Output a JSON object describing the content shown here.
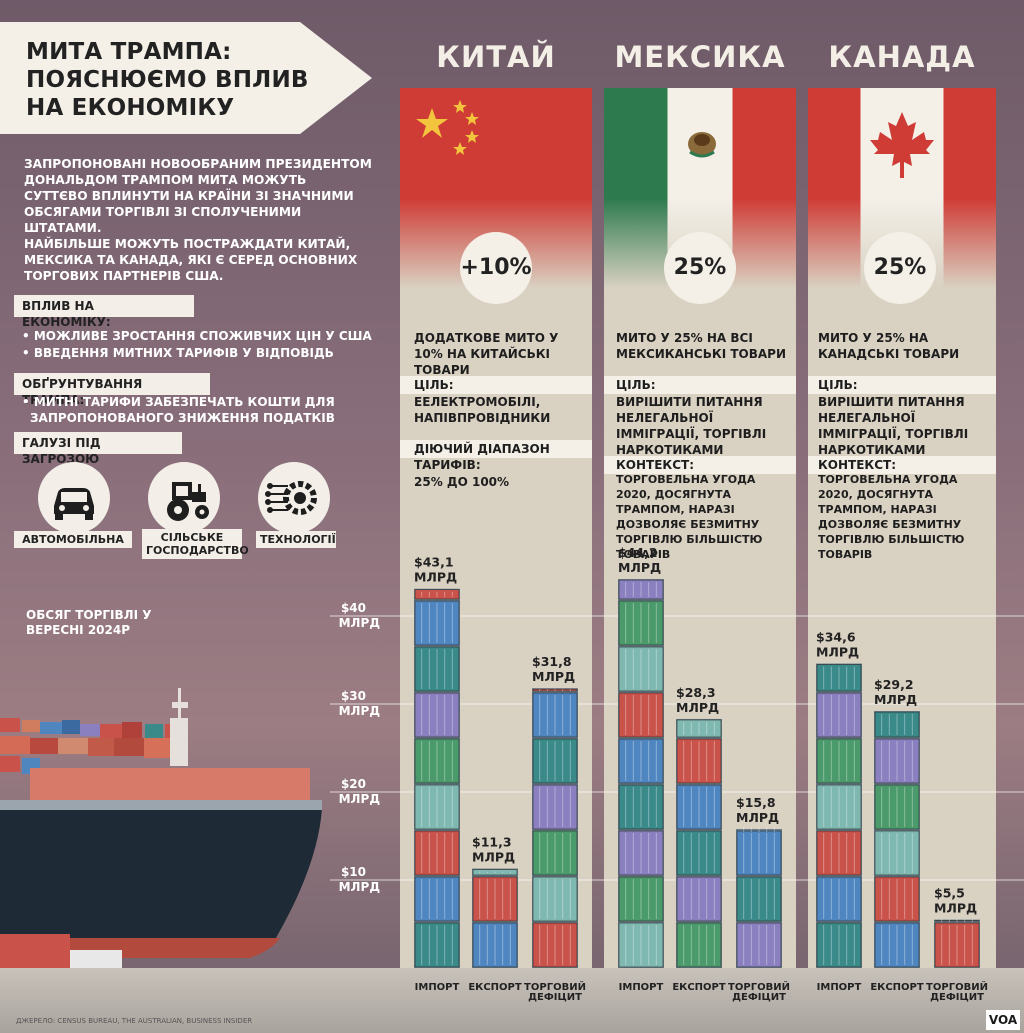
{
  "title": "МИТА ТРАМПА: ПОЯСНЮЄМО ВПЛИВ НА ЕКОНОМІКУ",
  "intro": [
    "ЗАПРОПОНОВАНІ НОВООБРАНИМ ПРЕЗИДЕНТОМ ДОНАЛЬДОМ ТРАМПОМ МИТА МОЖУТЬ СУТТЄВО ВПЛИНУТИ НА КРАЇНИ ЗІ ЗНАЧНИМИ ОБСЯГАМИ ТОРГІВЛІ ЗІ СПОЛУЧЕНИМИ ШТАТАМИ.",
    "НАЙБІЛЬШЕ МОЖУТЬ ПОСТРАЖДАТИ КИТАЙ, МЕКСИКА ТА КАНАДА, ЯКІ Є СЕРЕД ОСНОВНИХ ТОРГОВИХ ПАРТНЕРІВ США."
  ],
  "sections": {
    "impact_label": "ВПЛИВ НА ЕКОНОМІКУ:",
    "impact_items": [
      "• МОЖЛИВЕ ЗРОСТАННЯ СПОЖИВЧИХ ЦІН У США",
      "• ВВЕДЕННЯ МИТНИХ ТАРИФІВ У ВІДПОВІДЬ"
    ],
    "rationale_label": "ОБҐРУНТУВАННЯ ТРАМПА:",
    "rationale_items": [
      "• МИТНІ ТАРИФИ ЗАБЕЗПЕЧАТЬ КОШТИ ДЛЯ",
      "ЗАПРОПОНОВАНОГО ЗНИЖЕННЯ ПОДАТКІВ"
    ],
    "industries_label": "ГАЛУЗІ ПІД ЗАГРОЗОЮ",
    "industries": [
      {
        "icon": "car-icon",
        "label": "АВТОМОБІЛЬНА"
      },
      {
        "icon": "tractor-icon",
        "label": "СІЛЬСЬКЕ ГОСПОДАРСТВО"
      },
      {
        "icon": "technology-icon",
        "label": "ТЕХНОЛОГІЇ"
      }
    ]
  },
  "volume_label": "ОБСЯГ ТОРГІВЛІ У ВЕРЕСНІ 2024Р",
  "countries": [
    {
      "name": "КИТАЙ",
      "rate": "+10%",
      "desc": "ДОДАТКОВЕ МИТО У 10% НА КИТАЙСЬКІ ТОВАРИ",
      "goal_label": "ЦІЛЬ:",
      "goal": "ЕЕЛЕКТРОМОБІЛІ, НАПІВПРОВІДНИКИ",
      "extra_label": "ДІЮЧИЙ ДІАПАЗОН ТАРИФІВ:",
      "extra": "25% ДО 100%",
      "flag_colors": [
        "#cf3b35",
        "#f2c53d"
      ]
    },
    {
      "name": "МЕКСИКА",
      "rate": "25%",
      "desc": "МИТО У 25% НА ВСІ МЕКСИКАНСЬКІ ТОВАРИ",
      "goal_label": "ЦІЛЬ:",
      "goal": "ВИРІШИТИ ПИТАННЯ НЕЛЕГАЛЬНОЇ ІММІГРАЦІЇ, ТОРГІВЛІ НАРКОТИКАМИ",
      "extra_label": "КОНТЕКСТ:",
      "extra": "ТОРГОВЕЛЬНА УГОДА 2020, ДОСЯГНУТА ТРАМПОМ, НАРАЗІ ДОЗВОЛЯЄ БЕЗМИТНУ ТОРГІВЛЮ БІЛЬШІСТЮ ТОВАРІВ",
      "flag_colors": [
        "#2d7a4e",
        "#f4f0e8",
        "#cf3b35"
      ]
    },
    {
      "name": "КАНАДА",
      "rate": "25%",
      "desc": "МИТО У 25% НА КАНАДСЬКІ ТОВАРИ",
      "goal_label": "ЦІЛЬ:",
      "goal": "ВИРІШИТИ ПИТАННЯ НЕЛЕГАЛЬНОЇ ІММІГРАЦІЇ, ТОРГІВЛІ НАРКОТИКАМИ",
      "extra_label": "КОНТЕКСТ:",
      "extra": "ТОРГОВЕЛЬНА УГОДА 2020, ДОСЯГНУТА ТРАМПОМ, НАРАЗІ ДОЗВОЛЯЄ БЕЗМИТНУ ТОРГІВЛЮ БІЛЬШІСТЮ ТОВАРІВ",
      "flag_colors": [
        "#cf3b35",
        "#f4f0e8"
      ]
    }
  ],
  "chart_data": {
    "type": "bar",
    "categories": [
      "ІМПОРТ",
      "ЕКСПОРТ",
      "ТОРГОВИЙ ДЕФІЦИТ"
    ],
    "series": [
      {
        "name": "КИТАЙ",
        "values": [
          43.1,
          11.3,
          31.8
        ],
        "labels": [
          "$43,1 МЛРД",
          "$11,3 МЛРД",
          "$31,8 МЛРД"
        ]
      },
      {
        "name": "МЕКСИКА",
        "values": [
          44.2,
          28.3,
          15.8
        ],
        "labels": [
          "$44,2 МЛРД",
          "$28,3 МЛРД",
          "$15,8 МЛРД"
        ]
      },
      {
        "name": "КАНАДА",
        "values": [
          34.6,
          29.2,
          5.5
        ],
        "labels": [
          "$34,6 МЛРД",
          "$29,2 МЛРД",
          "$5,5 МЛРД"
        ]
      }
    ],
    "yticks": [
      {
        "value": 40,
        "label": "$40 МЛРД"
      },
      {
        "value": 30,
        "label": "$30 МЛРД"
      },
      {
        "value": 20,
        "label": "$20 МЛРД"
      },
      {
        "value": 10,
        "label": "$10 МЛРД"
      }
    ],
    "ylim": [
      0,
      50
    ],
    "category_labels": [
      "ІМПОРТ",
      "ЕКСПОРТ",
      "ТОРГОВИЙ ДЕФІЦИТ"
    ],
    "container_colors": [
      "#3a8a8a",
      "#4f86c0",
      "#c9534a",
      "#7fb8b0",
      "#4a9a6b",
      "#8a7fbf"
    ]
  },
  "source": "ДЖЕРЕЛО: CENSUS BUREAU, THE AUSTRALIAN, BUSINESS INSIDER",
  "logo": "VOA"
}
